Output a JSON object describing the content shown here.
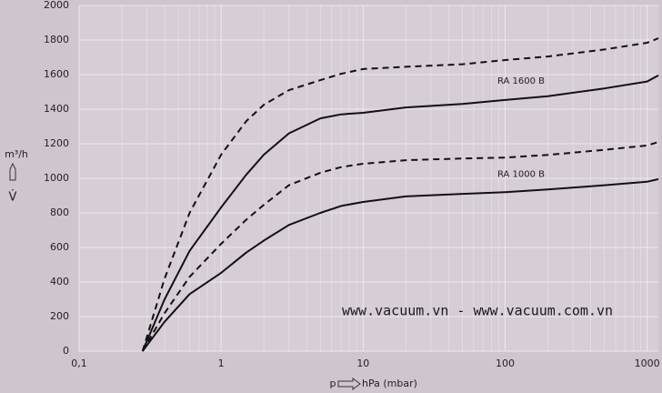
{
  "chart_data": {
    "type": "line",
    "x_label": "hPa (mbar)",
    "x_symbol": "p",
    "y_label": "m³/h",
    "y_symbol": "V̇",
    "annotation": "www.vacuum.vn - www.vacuum.com.vn",
    "x": [
      0.28,
      0.4,
      0.6,
      1,
      1.5,
      2,
      3,
      5,
      7,
      10,
      20,
      50,
      100,
      200,
      500,
      1000,
      1200
    ],
    "series": [
      {
        "color": "#111111",
        "dashed": true,
        "values": [
          0,
          420,
          800,
          1137,
          1330,
          1426,
          1510,
          1568,
          1605,
          1632,
          1645,
          1660,
          1684,
          1705,
          1745,
          1784,
          1810
        ]
      },
      {
        "name": "RA 1600 B",
        "color": "#111111",
        "dashed": false,
        "values": [
          0,
          300,
          580,
          832,
          1020,
          1137,
          1260,
          1347,
          1370,
          1379,
          1410,
          1430,
          1453,
          1475,
          1520,
          1560,
          1595
        ]
      },
      {
        "color": "#111111",
        "dashed": true,
        "values": [
          0,
          220,
          430,
          621,
          760,
          847,
          960,
          1032,
          1065,
          1084,
          1105,
          1115,
          1120,
          1135,
          1165,
          1190,
          1210
        ]
      },
      {
        "name": "RA 1000 B",
        "color": "#111111",
        "dashed": false,
        "values": [
          0,
          170,
          330,
          453,
          570,
          640,
          730,
          800,
          840,
          863,
          895,
          910,
          920,
          935,
          960,
          980,
          995
        ]
      }
    ],
    "xscale": "log",
    "xlim": [
      0.1,
      1200
    ],
    "xticks": [
      {
        "value": 0.1,
        "label": "0,1"
      },
      1,
      10,
      100,
      1000
    ],
    "ylim": [
      0,
      2000
    ],
    "yticks": [
      0,
      200,
      400,
      600,
      800,
      1000,
      1200,
      1400,
      1600,
      1800,
      2000
    ],
    "grid": true,
    "minor_grid": true
  }
}
